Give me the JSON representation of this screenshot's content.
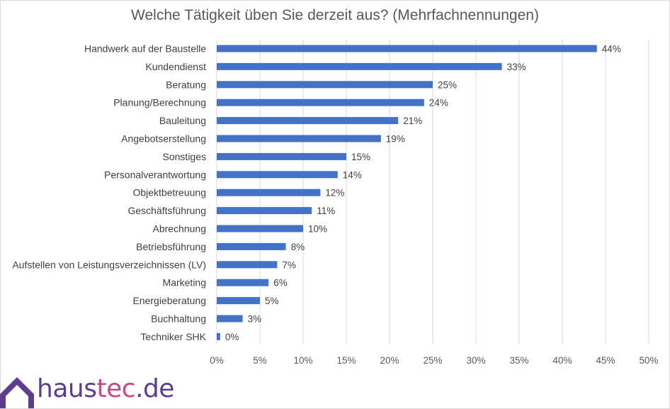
{
  "chart_data": {
    "type": "bar",
    "orientation": "horizontal",
    "title": "Welche Tätigkeit üben Sie derzeit aus? (Mehrfachnennungen)",
    "xlabel": "",
    "ylabel": "",
    "xlim": [
      0,
      50
    ],
    "grid": true,
    "legend": "none",
    "bar_color": "#4472c4",
    "categories": [
      "Handwerk auf der Baustelle",
      "Kundendienst",
      "Beratung",
      "Planung/Berechnung",
      "Bauleitung",
      "Angebotserstellung",
      "Sonstiges",
      "Personalverantwortung",
      "Objektbetreuung",
      "Geschäftsführung",
      "Abrechnung",
      "Betriebsführung",
      "Aufstellen von Leistungsverzeichnissen (LV)",
      "Marketing",
      "Energieberatung",
      "Buchhaltung",
      "Techniker SHK"
    ],
    "values": [
      44,
      33,
      25,
      24,
      21,
      19,
      15,
      14,
      12,
      11,
      10,
      8,
      7,
      6,
      5,
      3,
      0.4
    ],
    "value_labels": [
      "44%",
      "33%",
      "25%",
      "24%",
      "21%",
      "19%",
      "15%",
      "14%",
      "12%",
      "11%",
      "10%",
      "8%",
      "7%",
      "6%",
      "5%",
      "3%",
      "0%"
    ],
    "xticks": [
      {
        "value": 0,
        "label": "0%"
      },
      {
        "value": 5,
        "label": "5%"
      },
      {
        "value": 10,
        "label": "10%"
      },
      {
        "value": 15,
        "label": "15%"
      },
      {
        "value": 20,
        "label": "20%"
      },
      {
        "value": 25,
        "label": "25%"
      },
      {
        "value": 30,
        "label": "30%"
      },
      {
        "value": 35,
        "label": "35%"
      },
      {
        "value": 40,
        "label": "40%"
      },
      {
        "value": 45,
        "label": "45%"
      },
      {
        "value": 50,
        "label": "50%"
      }
    ]
  },
  "logo": {
    "part1": "haus",
    "part2": "tec",
    "part3": ".de",
    "icon": "house-roof-icon",
    "colors": {
      "purple": "#5c3d8f",
      "pink": "#c24a8a"
    }
  }
}
